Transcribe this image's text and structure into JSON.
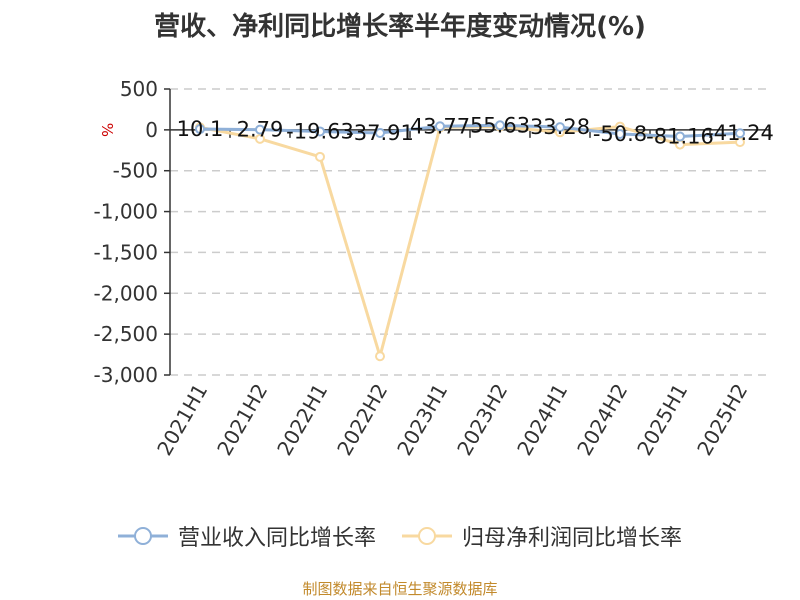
{
  "chart_data": {
    "type": "line",
    "title": "营收、净利同比增长率半年度变动情况(%)",
    "ylabel": "%",
    "categories": [
      "2021H1",
      "2021H2",
      "2022H1",
      "2022H2",
      "2023H1",
      "2023H2",
      "2024H1",
      "2024H2",
      "2025H1",
      "2025H2"
    ],
    "y_ticks": [
      "500",
      "0",
      "-500",
      "-1,000",
      "-1,500",
      "-2,000",
      "-2,500",
      "-3,000"
    ],
    "ylim": [
      -3000,
      500
    ],
    "grid": true,
    "legend_position": "bottom",
    "series": [
      {
        "name": "营业收入同比增长率",
        "color": "#8fb0d8",
        "values": [
          10.1,
          2.79,
          -19.63,
          -37.91,
          43.77,
          55.63,
          33.28,
          -50.8,
          -81.16,
          -41.24
        ],
        "labels": [
          "10.1",
          "2.79",
          "-19.63",
          "-37.91",
          "43.77",
          "55.63",
          "33.28",
          "-50.8",
          "-81.16",
          "-41.24"
        ]
      },
      {
        "name": "归母净利润同比增长率",
        "color": "#f8d9a0",
        "values": [
          30,
          -110,
          -330,
          -2770,
          30,
          40,
          -30,
          40,
          -180,
          -150
        ]
      }
    ],
    "source": "制图数据来自恒生聚源数据库"
  }
}
